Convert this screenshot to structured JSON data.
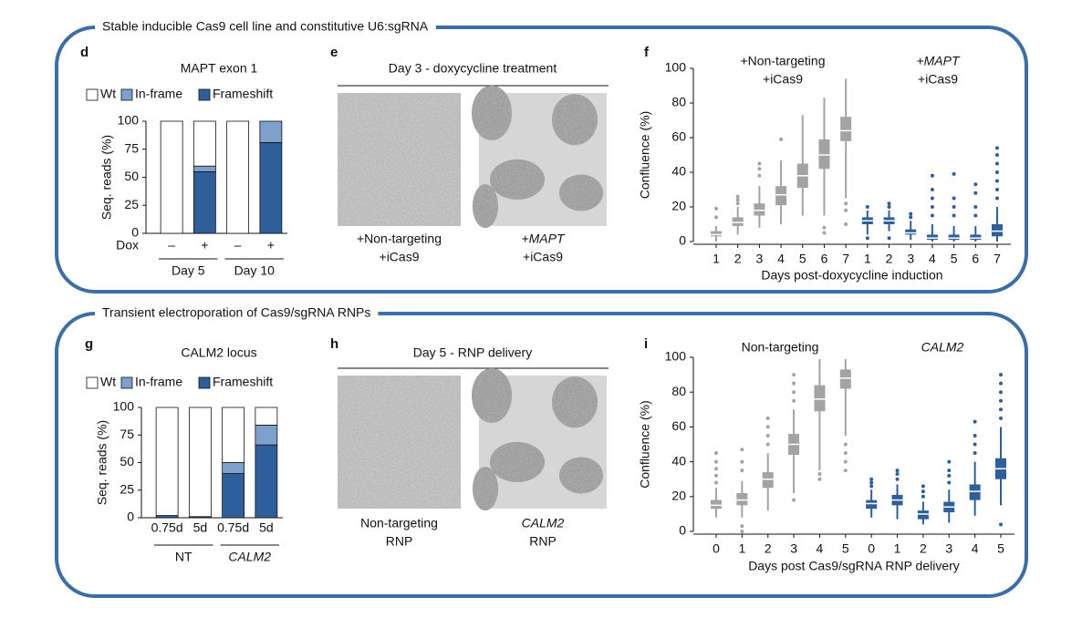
{
  "sections": [
    "Stable inducible Cas9 cell line and constitutive U6:sgRNA",
    "Transient electroporation of Cas9/sgRNA RNPs"
  ],
  "images": [
    {
      "panel": "e",
      "title": "Day 3 - doxycycline treatment",
      "captions": [
        [
          "+Non-targeting",
          "+iCas9"
        ],
        [
          "+MAPT",
          "+iCas9"
        ]
      ]
    },
    {
      "panel": "h",
      "title": "Day 5 - RNP delivery",
      "captions": [
        [
          "Non-targeting",
          "RNP"
        ],
        [
          "CALM2",
          "RNP"
        ]
      ]
    }
  ],
  "chart_data": [
    {
      "type": "stacked_bar",
      "panel": "d",
      "title": "MAPT exon 1",
      "ylabel": "Seq. reads (%)",
      "ylim": [
        0,
        100
      ],
      "yticks": [
        0,
        25,
        50,
        75,
        100
      ],
      "categories": [
        "–",
        "+",
        "–",
        "+"
      ],
      "row_label": "Dox",
      "groups": [
        "Day 5",
        "Day 10"
      ],
      "series": [
        {
          "name": "Wt",
          "color": "#ffffff",
          "values": [
            100,
            40,
            100,
            0
          ]
        },
        {
          "name": "In-frame",
          "color": "#7ea1cc",
          "values": [
            0,
            5,
            0,
            19
          ]
        },
        {
          "name": "Frameshift",
          "color": "#2f5f9a",
          "values": [
            0,
            55,
            0,
            81
          ]
        }
      ]
    },
    {
      "type": "box",
      "panel": "f",
      "ylabel": "Confluence (%)",
      "xlabel": "Days post-doxycycline induction",
      "ylim": [
        0,
        100
      ],
      "yticks": [
        0,
        20,
        40,
        60,
        80,
        100
      ],
      "categories": [
        1,
        2,
        3,
        4,
        5,
        6,
        7
      ],
      "series": [
        {
          "name": [
            "+Non-targeting",
            "+iCas9"
          ],
          "color": "#a3a3a3",
          "boxes": [
            {
              "whislo": 0,
              "q1": 3,
              "med": 4,
              "q3": 6,
              "whishi": 9,
              "fliers": [
                14,
                19
              ]
            },
            {
              "whislo": 4,
              "q1": 9,
              "med": 11,
              "q3": 14,
              "whishi": 20,
              "fliers": [
                22,
                24,
                26
              ]
            },
            {
              "whislo": 8,
              "q1": 15,
              "med": 18,
              "q3": 22,
              "whishi": 32,
              "fliers": [
                38,
                42,
                45
              ]
            },
            {
              "whislo": 10,
              "q1": 21,
              "med": 27,
              "q3": 32,
              "whishi": 47,
              "fliers": [
                59
              ]
            },
            {
              "whislo": 15,
              "q1": 31,
              "med": 38,
              "q3": 45,
              "whishi": 73,
              "fliers": []
            },
            {
              "whislo": 15,
              "q1": 42,
              "med": 50,
              "q3": 59,
              "whishi": 83,
              "fliers": [
                5,
                8
              ]
            },
            {
              "whislo": 25,
              "q1": 58,
              "med": 64,
              "q3": 72,
              "whishi": 94,
              "fliers": [
                10,
                18,
                22
              ]
            }
          ]
        },
        {
          "name": [
            "+MAPT",
            "+iCas9"
          ],
          "color": "#2f5f9a",
          "boxes": [
            {
              "whislo": 4,
              "q1": 10,
              "med": 12,
              "q3": 14,
              "whishi": 18,
              "fliers": [
                2,
                20
              ]
            },
            {
              "whislo": 6,
              "q1": 10,
              "med": 12,
              "q3": 14,
              "whishi": 18,
              "fliers": [
                2,
                20,
                22
              ]
            },
            {
              "whislo": 1,
              "q1": 4,
              "med": 5,
              "q3": 7,
              "whishi": 12,
              "fliers": [
                14,
                16
              ]
            },
            {
              "whislo": 0,
              "q1": 1,
              "med": 2,
              "q3": 4,
              "whishi": 10,
              "fliers": [
                15,
                20,
                25,
                30,
                38
              ]
            },
            {
              "whislo": 0,
              "q1": 1,
              "med": 2,
              "q3": 4,
              "whishi": 9,
              "fliers": [
                15,
                20,
                25,
                39
              ]
            },
            {
              "whislo": 0,
              "q1": 1,
              "med": 2,
              "q3": 4,
              "whishi": 9,
              "fliers": [
                15,
                20,
                28,
                33
              ]
            },
            {
              "whislo": 0,
              "q1": 3,
              "med": 6,
              "q3": 10,
              "whishi": 20,
              "fliers": [
                25,
                30,
                35,
                40,
                45,
                50,
                54
              ]
            }
          ]
        }
      ]
    },
    {
      "type": "stacked_bar",
      "panel": "g",
      "title": "CALM2 locus",
      "ylabel": "Seq. reads (%)",
      "ylim": [
        0,
        100
      ],
      "yticks": [
        0,
        25,
        50,
        75,
        100
      ],
      "categories": [
        "0.75d",
        "5d",
        "0.75d",
        "5d"
      ],
      "groups": [
        "NT",
        "CALM2"
      ],
      "series": [
        {
          "name": "Wt",
          "color": "#ffffff",
          "values": [
            98,
            99,
            50,
            16
          ]
        },
        {
          "name": "In-frame",
          "color": "#7ea1cc",
          "values": [
            0,
            0,
            10,
            18
          ]
        },
        {
          "name": "Frameshift",
          "color": "#2f5f9a",
          "values": [
            2,
            1,
            40,
            66
          ]
        }
      ]
    },
    {
      "type": "box",
      "panel": "i",
      "ylabel": "Confluence (%)",
      "xlabel": "Days post Cas9/sgRNA RNP delivery",
      "ylim": [
        0,
        100
      ],
      "yticks": [
        0,
        20,
        40,
        60,
        80,
        100
      ],
      "categories": [
        0,
        1,
        2,
        3,
        4,
        5
      ],
      "series": [
        {
          "name": [
            "Non-targeting"
          ],
          "color": "#a3a3a3",
          "boxes": [
            {
              "whislo": 8,
              "q1": 13,
              "med": 15,
              "q3": 18,
              "whishi": 25,
              "fliers": [
                28,
                32,
                36,
                40,
                45
              ]
            },
            {
              "whislo": 8,
              "q1": 15,
              "med": 18,
              "q3": 22,
              "whishi": 29,
              "fliers": [
                0,
                3,
                35,
                40,
                47
              ]
            },
            {
              "whislo": 12,
              "q1": 25,
              "med": 30,
              "q3": 34,
              "whishi": 45,
              "fliers": [
                50,
                55,
                60,
                65
              ]
            },
            {
              "whislo": 22,
              "q1": 44,
              "med": 50,
              "q3": 56,
              "whishi": 70,
              "fliers": [
                18,
                75,
                80,
                85,
                90
              ]
            },
            {
              "whislo": 35,
              "q1": 69,
              "med": 76,
              "q3": 84,
              "whishi": 99,
              "fliers": [
                30,
                33
              ]
            },
            {
              "whislo": 55,
              "q1": 82,
              "med": 88,
              "q3": 93,
              "whishi": 99,
              "fliers": [
                35,
                40,
                45,
                50
              ]
            }
          ]
        },
        {
          "name": [
            "CALM2"
          ],
          "color": "#2f5f9a",
          "boxes": [
            {
              "whislo": 8,
              "q1": 13,
              "med": 16,
              "q3": 18,
              "whishi": 24,
              "fliers": [
                26,
                28,
                30
              ]
            },
            {
              "whislo": 7,
              "q1": 15,
              "med": 18,
              "q3": 21,
              "whishi": 27,
              "fliers": [
                30,
                33,
                35
              ]
            },
            {
              "whislo": 4,
              "q1": 7,
              "med": 10,
              "q3": 12,
              "whishi": 17,
              "fliers": [
                20,
                23,
                26
              ]
            },
            {
              "whislo": 5,
              "q1": 11,
              "med": 14,
              "q3": 17,
              "whishi": 24,
              "fliers": [
                28,
                32,
                35,
                40
              ]
            },
            {
              "whislo": 9,
              "q1": 18,
              "med": 23,
              "q3": 27,
              "whishi": 40,
              "fliers": [
                45,
                50,
                55,
                63
              ]
            },
            {
              "whislo": 15,
              "q1": 30,
              "med": 36,
              "q3": 42,
              "whishi": 60,
              "fliers": [
                4,
                65,
                70,
                75,
                80,
                85,
                90
              ]
            }
          ]
        }
      ]
    }
  ]
}
